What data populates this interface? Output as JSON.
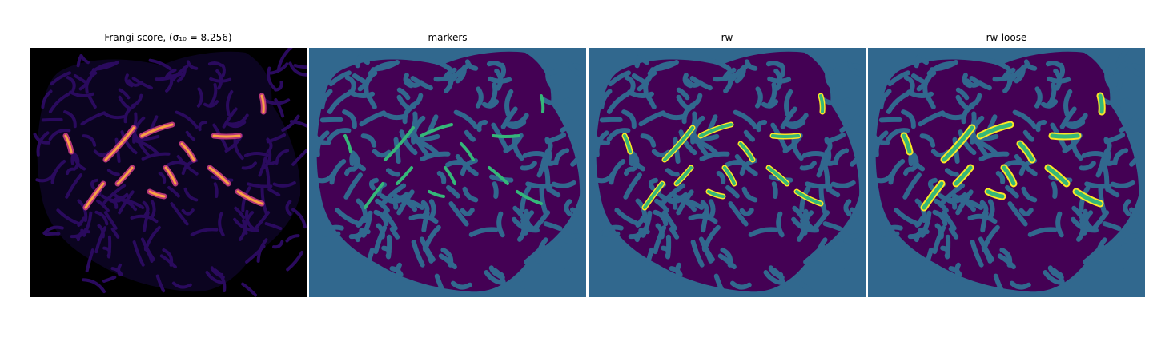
{
  "figure": {
    "panels": [
      {
        "id": "frangi",
        "title": "Frangi score, (σ₁₀ = 8.256)",
        "background": "#000000",
        "base": "#2a0a5e",
        "highlight": "#f9a244",
        "mid": "#b5367a"
      },
      {
        "id": "markers",
        "title": "markers",
        "background": "#31688e",
        "base": "#440154",
        "highlight": "#35b779"
      },
      {
        "id": "rw",
        "title": "rw",
        "background": "#31688e",
        "base": "#440154",
        "highlight": "#fde725",
        "mid": "#35b779"
      },
      {
        "id": "rw-loose",
        "title": "rw-loose",
        "background": "#31688e",
        "base": "#440154",
        "highlight": "#fde725",
        "mid": "#35b779"
      }
    ]
  }
}
